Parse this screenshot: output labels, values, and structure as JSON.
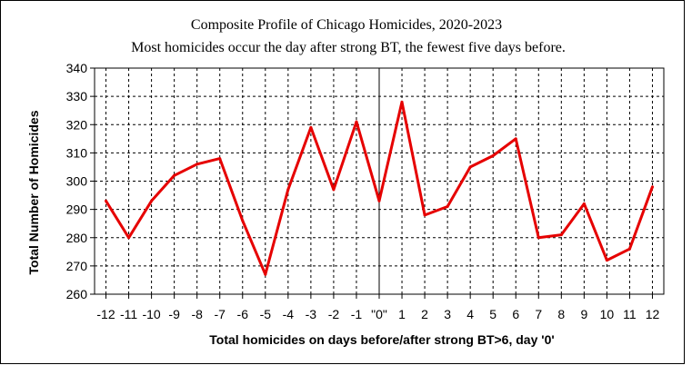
{
  "chart_data": {
    "type": "line",
    "title": "Composite Profile of Chicago Homicides, 2020-2023",
    "subtitle": "Most homicides occur the day after strong BT, the fewest five days before.",
    "xlabel": "Total homicides on days before/after strong BT>6, day '0'",
    "ylabel": "Total Number of Homicides",
    "x_tick_labels": [
      "-12",
      "-11",
      "-10",
      "-9",
      "-8",
      "-7",
      "-6",
      "-5",
      "-4",
      "-3",
      "-2",
      "-1",
      "\"0\"",
      "1",
      "2",
      "3",
      "4",
      "5",
      "6",
      "7",
      "8",
      "9",
      "10",
      "11",
      "12"
    ],
    "x": [
      -12,
      -11,
      -10,
      -9,
      -8,
      -7,
      -6,
      -5,
      -4,
      -3,
      -2,
      -1,
      0,
      1,
      2,
      3,
      4,
      5,
      6,
      7,
      8,
      9,
      10,
      11,
      12
    ],
    "series": [
      {
        "values": [
          293,
          280,
          293,
          302,
          306,
          308,
          286,
          267,
          297,
          319,
          297,
          321,
          293,
          328,
          288,
          291,
          305,
          309,
          315,
          280,
          281,
          292,
          272,
          276,
          298
        ],
        "color": "#e60000"
      }
    ],
    "ylim": [
      260,
      340
    ],
    "y_ticks": [
      260,
      270,
      280,
      290,
      300,
      310,
      320,
      330,
      340
    ],
    "xlim": [
      -12.5,
      12.5
    ],
    "grid": true,
    "day0_line": true,
    "legend": "none"
  }
}
